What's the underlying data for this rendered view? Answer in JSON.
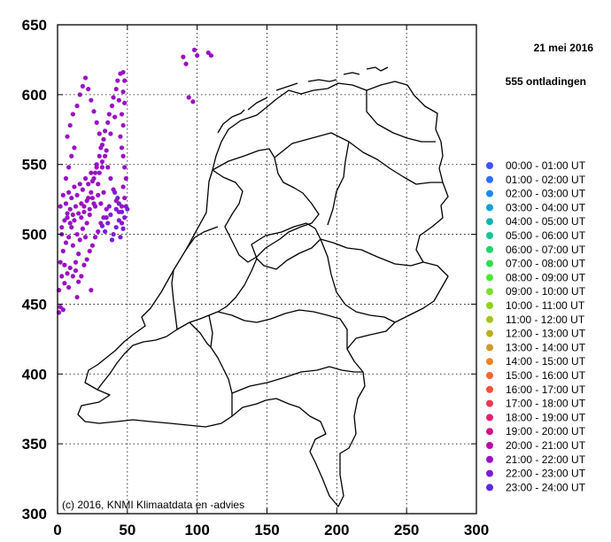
{
  "chart_data": {
    "type": "scatter",
    "title": "",
    "date": "21 mei 2016",
    "count_label": "555 ontladingen",
    "copyright": "(c) 2016, KNMI Klimaatdata en -advies",
    "xlim": [
      0,
      300
    ],
    "ylim": [
      300,
      650
    ],
    "x_ticks": [
      "0",
      "50",
      "100",
      "150",
      "200",
      "250",
      "300"
    ],
    "y_ticks": [
      "300",
      "350",
      "400",
      "450",
      "500",
      "550",
      "600",
      "650"
    ],
    "grid": true,
    "legend_position": "right",
    "legend": [
      {
        "label": "00:00 - 01:00 UT",
        "color": "#3f51ff"
      },
      {
        "label": "01:00 - 02:00 UT",
        "color": "#2f6cff"
      },
      {
        "label": "02:00 - 03:00 UT",
        "color": "#1e88f5"
      },
      {
        "label": "03:00 - 04:00 UT",
        "color": "#12a0d6"
      },
      {
        "label": "04:00 - 05:00 UT",
        "color": "#10b2b0"
      },
      {
        "label": "05:00 - 06:00 UT",
        "color": "#14c690"
      },
      {
        "label": "06:00 - 07:00 UT",
        "color": "#1ad56c"
      },
      {
        "label": "07:00 - 08:00 UT",
        "color": "#28e04c"
      },
      {
        "label": "08:00 - 09:00 UT",
        "color": "#4ae83a"
      },
      {
        "label": "09:00 - 10:00 UT",
        "color": "#78e12a"
      },
      {
        "label": "10:00 - 11:00 UT",
        "color": "#8cd31a"
      },
      {
        "label": "11:00 - 12:00 UT",
        "color": "#a3c516"
      },
      {
        "label": "12:00 - 13:00 UT",
        "color": "#bcae1e"
      },
      {
        "label": "13:00 - 14:00 UT",
        "color": "#d29828"
      },
      {
        "label": "14:00 - 15:00 UT",
        "color": "#ec8224"
      },
      {
        "label": "15:00 - 16:00 UT",
        "color": "#f8662c"
      },
      {
        "label": "16:00 - 17:00 UT",
        "color": "#fa4c3a"
      },
      {
        "label": "17:00 - 18:00 UT",
        "color": "#f4344e"
      },
      {
        "label": "18:00 - 19:00 UT",
        "color": "#e8206a"
      },
      {
        "label": "19:00 - 20:00 UT",
        "color": "#d21286"
      },
      {
        "label": "20:00 - 21:00 UT",
        "color": "#b80ca6"
      },
      {
        "label": "21:00 - 22:00 UT",
        "color": "#9a10c4"
      },
      {
        "label": "22:00 - 23:00 UT",
        "color": "#7c1ad8"
      },
      {
        "label": "23:00 - 24:00 UT",
        "color": "#5e28e6"
      }
    ],
    "series": [
      {
        "color_index": 21,
        "points": [
          [
            1,
            460
          ],
          [
            3,
            470
          ],
          [
            2,
            480
          ],
          [
            5,
            478
          ],
          [
            4,
            488
          ],
          [
            6,
            494
          ],
          [
            3,
            500
          ],
          [
            8,
            498
          ],
          [
            10,
            505
          ],
          [
            7,
            512
          ],
          [
            9,
            518
          ],
          [
            12,
            510
          ],
          [
            14,
            500
          ],
          [
            11,
            492
          ],
          [
            15,
            486
          ],
          [
            13,
            480
          ],
          [
            16,
            496
          ],
          [
            18,
            504
          ],
          [
            20,
            498
          ],
          [
            17,
            512
          ],
          [
            19,
            520
          ],
          [
            21,
            508
          ],
          [
            23,
            514
          ],
          [
            22,
            526
          ],
          [
            24,
            530
          ],
          [
            26,
            522
          ],
          [
            25,
            538
          ],
          [
            27,
            544
          ],
          [
            29,
            536
          ],
          [
            28,
            550
          ],
          [
            30,
            556
          ],
          [
            32,
            548
          ],
          [
            31,
            562
          ],
          [
            33,
            568
          ],
          [
            35,
            560
          ],
          [
            34,
            574
          ],
          [
            36,
            580
          ],
          [
            38,
            572
          ],
          [
            37,
            586
          ],
          [
            39,
            592
          ],
          [
            41,
            584
          ],
          [
            40,
            598
          ],
          [
            42,
            604
          ],
          [
            44,
            596
          ],
          [
            43,
            610
          ],
          [
            45,
            615
          ],
          [
            6,
            540
          ],
          [
            8,
            548
          ],
          [
            10,
            556
          ],
          [
            12,
            562
          ],
          [
            7,
            570
          ],
          [
            9,
            578
          ],
          [
            11,
            586
          ],
          [
            14,
            592
          ],
          [
            16,
            600
          ],
          [
            18,
            606
          ],
          [
            20,
            612
          ],
          [
            22,
            604
          ],
          [
            24,
            596
          ],
          [
            26,
            588
          ],
          [
            28,
            580
          ],
          [
            30,
            572
          ],
          [
            32,
            564
          ],
          [
            34,
            556
          ],
          [
            36,
            548
          ],
          [
            38,
            540
          ],
          [
            40,
            532
          ],
          [
            42,
            524
          ],
          [
            44,
            516
          ],
          [
            46,
            508
          ],
          [
            2,
            520
          ],
          [
            4,
            528
          ],
          [
            6,
            522
          ],
          [
            8,
            530
          ],
          [
            10,
            526
          ],
          [
            12,
            534
          ],
          [
            14,
            528
          ],
          [
            16,
            536
          ],
          [
            18,
            532
          ],
          [
            20,
            540
          ],
          [
            22,
            536
          ],
          [
            24,
            544
          ],
          [
            26,
            540
          ],
          [
            28,
            548
          ],
          [
            30,
            544
          ],
          [
            32,
            552
          ],
          [
            5,
            465
          ],
          [
            7,
            472
          ],
          [
            9,
            476
          ],
          [
            11,
            470
          ],
          [
            13,
            474
          ],
          [
            15,
            466
          ],
          [
            17,
            470
          ],
          [
            19,
            478
          ],
          [
            21,
            482
          ],
          [
            23,
            488
          ],
          [
            25,
            492
          ],
          [
            27,
            498
          ],
          [
            29,
            502
          ],
          [
            31,
            508
          ],
          [
            33,
            512
          ],
          [
            35,
            518
          ],
          [
            46,
            520
          ],
          [
            48,
            526
          ],
          [
            47,
            534
          ],
          [
            49,
            540
          ],
          [
            48,
            548
          ],
          [
            47,
            556
          ],
          [
            46,
            562
          ],
          [
            45,
            570
          ],
          [
            47,
            578
          ],
          [
            46,
            586
          ],
          [
            48,
            594
          ],
          [
            47,
            602
          ],
          [
            48,
            610
          ],
          [
            47,
            616
          ],
          [
            3,
            505
          ],
          [
            5,
            510
          ],
          [
            7,
            515
          ],
          [
            9,
            508
          ],
          [
            11,
            514
          ],
          [
            13,
            520
          ],
          [
            15,
            515
          ],
          [
            17,
            522
          ],
          [
            19,
            516
          ],
          [
            21,
            524
          ],
          [
            23,
            518
          ],
          [
            25,
            526
          ],
          [
            27,
            520
          ],
          [
            29,
            528
          ],
          [
            31,
            522
          ],
          [
            33,
            530
          ],
          [
            2,
            448
          ],
          [
            4,
            446
          ],
          [
            1,
            444
          ],
          [
            24,
            460
          ],
          [
            14,
            455
          ],
          [
            8,
            462
          ]
        ]
      },
      {
        "color_index": 22,
        "points": [
          [
            40,
            500
          ],
          [
            42,
            505
          ],
          [
            44,
            510
          ],
          [
            38,
            514
          ],
          [
            46,
            516
          ],
          [
            48,
            512
          ],
          [
            50,
            518
          ],
          [
            44,
            522
          ],
          [
            42,
            518
          ],
          [
            36,
            508
          ],
          [
            34,
            502
          ],
          [
            32,
            506
          ],
          [
            39,
            496
          ],
          [
            45,
            498
          ],
          [
            47,
            504
          ],
          [
            49,
            520
          ],
          [
            43,
            526
          ],
          [
            41,
            530
          ],
          [
            37,
            520
          ],
          [
            35,
            512
          ]
        ]
      },
      {
        "color_index": 21,
        "points": [
          [
            90,
            627
          ],
          [
            92,
            622
          ],
          [
            98,
            632
          ],
          [
            100,
            628
          ],
          [
            108,
            630
          ],
          [
            110,
            628
          ],
          [
            94,
            598
          ],
          [
            97,
            595
          ]
        ]
      }
    ]
  }
}
